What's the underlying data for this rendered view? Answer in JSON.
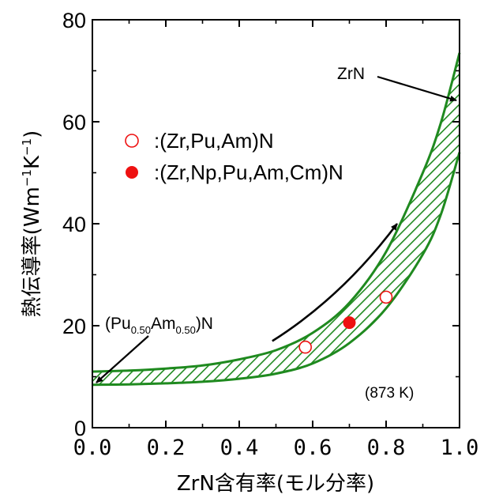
{
  "chart_data": {
    "type": "scatter",
    "xlabel": "ZrN含有率(モル分率)",
    "ylabel_main": "熱伝導率(Wm",
    "ylabel_exp1": "−1",
    "ylabel_mid": "K",
    "ylabel_exp2": "−1",
    "ylabel_end": ")",
    "xlim": [
      0.0,
      1.0
    ],
    "ylim": [
      0,
      80
    ],
    "x_ticks": [
      "0.0",
      "0.2",
      "0.4",
      "0.6",
      "0.8",
      "1.0"
    ],
    "y_ticks": [
      "0",
      "20",
      "40",
      "60",
      "80"
    ],
    "series": [
      {
        "name": ":(Zr,Pu,Am)N",
        "marker": "open-circle",
        "color": "#ee1111",
        "points": [
          {
            "x": 0.58,
            "y": 15.8
          },
          {
            "x": 0.8,
            "y": 25.6
          }
        ]
      },
      {
        "name": ":(Zr,Np,Pu,Am,Cm)N",
        "marker": "filled-circle",
        "color": "#ee1111",
        "points": [
          {
            "x": 0.7,
            "y": 20.6
          }
        ]
      }
    ],
    "band": {
      "color": "#1f8a1f",
      "upper": [
        [
          0.0,
          11.0
        ],
        [
          0.1,
          11.2
        ],
        [
          0.2,
          11.6
        ],
        [
          0.3,
          12.2
        ],
        [
          0.4,
          13.4
        ],
        [
          0.5,
          15.2
        ],
        [
          0.6,
          18.6
        ],
        [
          0.7,
          24.5
        ],
        [
          0.8,
          34.5
        ],
        [
          0.9,
          50.0
        ],
        [
          0.95,
          60.0
        ],
        [
          1.0,
          73.5
        ]
      ],
      "lower": [
        [
          0.0,
          8.4
        ],
        [
          0.1,
          8.5
        ],
        [
          0.2,
          8.7
        ],
        [
          0.3,
          9.0
        ],
        [
          0.4,
          9.6
        ],
        [
          0.5,
          10.6
        ],
        [
          0.6,
          12.6
        ],
        [
          0.7,
          16.6
        ],
        [
          0.8,
          23.4
        ],
        [
          0.9,
          34.0
        ],
        [
          0.95,
          42.0
        ],
        [
          1.0,
          54.0
        ]
      ]
    },
    "annotations": {
      "zrn": {
        "text": "ZrN",
        "x": 1.0,
        "y": 64
      },
      "pu_prefix": "(Pu",
      "pu_sub1": "0.50",
      "pu_mid": "Am",
      "pu_sub2": "0.50",
      "pu_suffix": ")N",
      "pu_target": {
        "x": 0.0,
        "y": 9.5
      },
      "temperature": "(873 K)"
    },
    "trend_arrow": {
      "from": {
        "x": 0.49,
        "y": 17
      },
      "to": {
        "x": 0.83,
        "y": 40
      }
    }
  }
}
